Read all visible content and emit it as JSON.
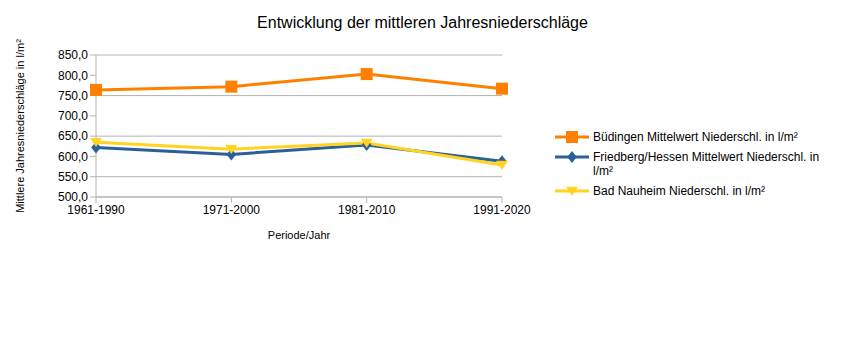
{
  "chart_data": {
    "type": "line",
    "title": "Entwicklung der mittleren Jahresniederschläge",
    "x_label": "Periode/Jahr",
    "y_label": "Mittlere Jahresniederschläge in l/m²",
    "categories": [
      "1961-1990",
      "1971-2000",
      "1981-2010",
      "1991-2020"
    ],
    "series": [
      {
        "name": "Büdingen Mittelwert Niederschl. in l/m²",
        "color": "#ff8000",
        "marker": "square",
        "values": [
          764,
          772,
          803,
          767
        ]
      },
      {
        "name": "Friedberg/Hessen Mittelwert Niederschl. in l/m²",
        "color": "#2a6099",
        "marker": "diamond",
        "values": [
          622,
          605,
          628,
          588
        ]
      },
      {
        "name": "Bad Nauheim Niederschl. in l/m²",
        "color": "#ffd320",
        "marker": "triangle-down",
        "values": [
          635,
          618,
          633,
          579
        ]
      }
    ],
    "ylim": [
      500,
      850
    ],
    "yticks": [
      {
        "value": 500,
        "label": "500,0"
      },
      {
        "value": 550,
        "label": "550,0"
      },
      {
        "value": 600,
        "label": "600,0"
      },
      {
        "value": 650,
        "label": "650,0"
      },
      {
        "value": 700,
        "label": "700,0"
      },
      {
        "value": 750,
        "label": "750,0"
      },
      {
        "value": 800,
        "label": "800,0"
      },
      {
        "value": 850,
        "label": "850,0"
      }
    ],
    "grid": true,
    "legend": "right"
  }
}
